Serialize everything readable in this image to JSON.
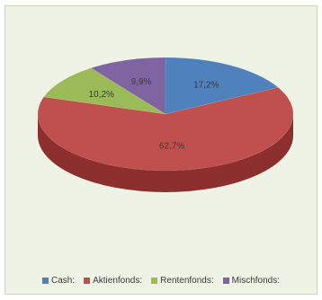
{
  "chart_data": {
    "type": "pie",
    "title": "",
    "style": "3d-pie",
    "legend_position": "bottom",
    "slices": [
      {
        "label": "Cash:",
        "value": 17.2,
        "display": "17,2%",
        "color": "#4f81bd",
        "side_color": "#3a6496"
      },
      {
        "label": "Aktienfonds:",
        "value": 62.7,
        "display": "62,7%",
        "color": "#c0504d",
        "side_color": "#8c2f2d"
      },
      {
        "label": "Rentenfonds:",
        "value": 10.2,
        "display": "10,2%",
        "color": "#9bbb59",
        "side_color": "#6f8a3a"
      },
      {
        "label": "Mischfonds:",
        "value": 9.9,
        "display": "9,9%",
        "color": "#8064a2",
        "side_color": "#5b4477"
      }
    ]
  }
}
